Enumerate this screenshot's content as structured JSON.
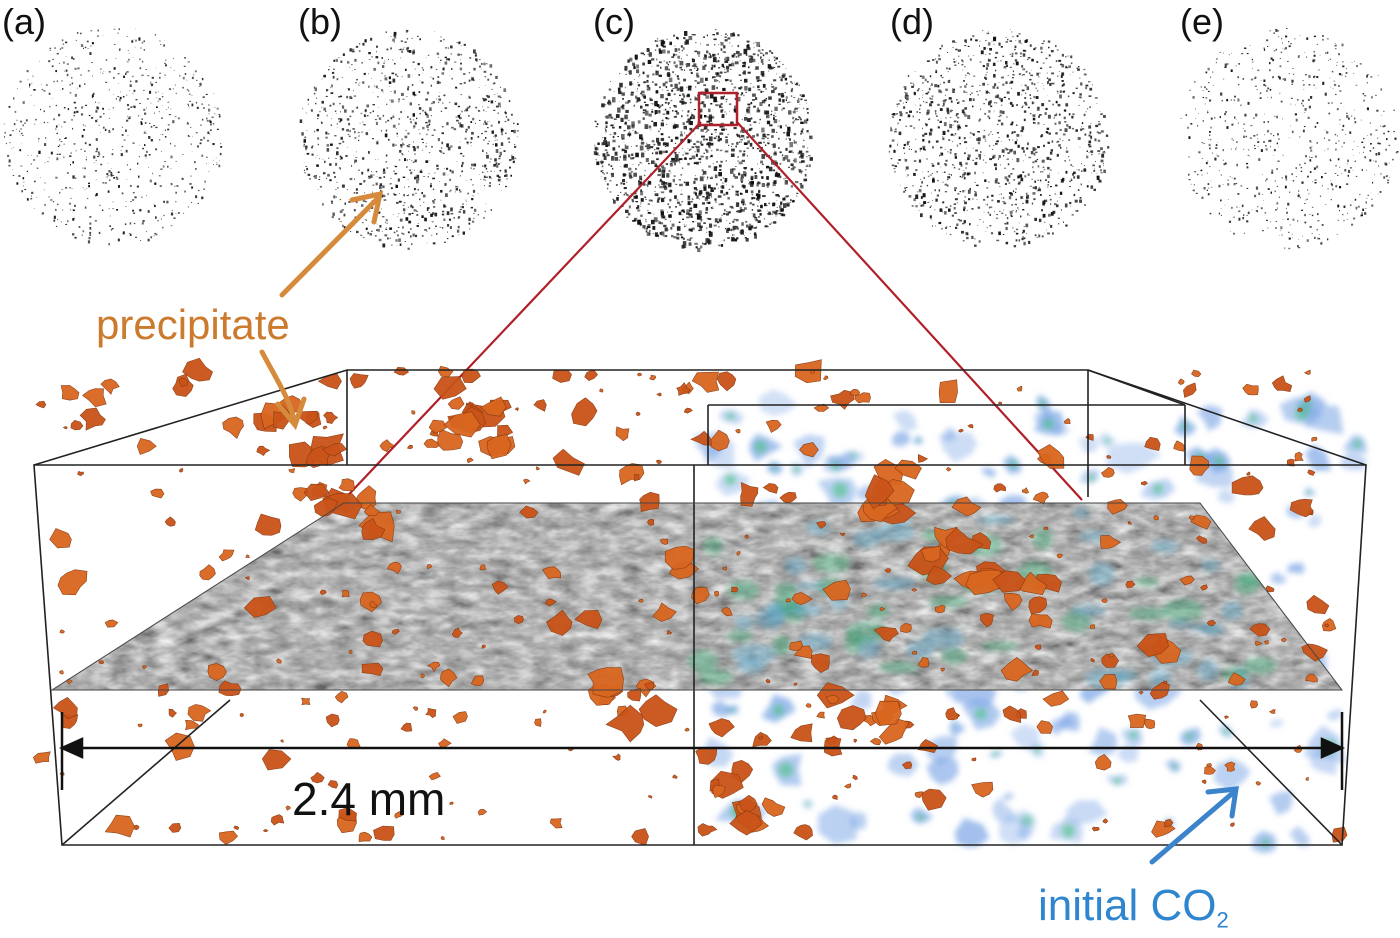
{
  "panels": [
    {
      "label": "(a)",
      "density": 0.22
    },
    {
      "label": "(b)",
      "density": 0.45
    },
    {
      "label": "(c)",
      "density": 0.9
    },
    {
      "label": "(d)",
      "density": 0.55
    },
    {
      "label": "(e)",
      "density": 0.2
    }
  ],
  "annotations": {
    "precipitate": "precipitate",
    "initial_co2_text": "initial CO",
    "initial_co2_sub": "2",
    "scale": "2.4 mm"
  },
  "colors": {
    "precipitate": "#d9661f",
    "precipitate_label": "#cc7a2e",
    "co2_label": "#2f86cf",
    "co2_blobs": "#7fa8e6",
    "co2_core": "#3fbf7a",
    "zoom_lines": "#b0202a",
    "box": "#222222"
  }
}
